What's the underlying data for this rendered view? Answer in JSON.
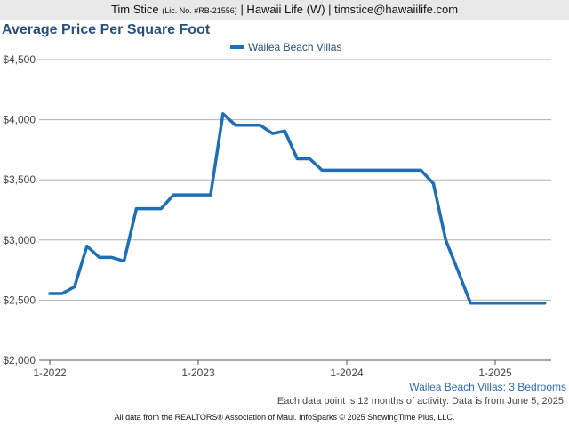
{
  "header": {
    "name": "Tim Stice",
    "license": "(Lic. No. #RB-21556)",
    "rest": "| Hawaii Life (W) | timstice@hawaiilife.com"
  },
  "colors": {
    "line": "#1f6fb4",
    "title": "#2b4f7b",
    "grid": "#b0b0b0"
  },
  "subtitle": "Wailea Beach Villas: 3 Bedrooms",
  "note": "Each data point is 12 months of activity. Data is from June 5, 2025.",
  "footer": "All data from the REALTORS® Association of Maui. InfoSparks © 2025 ShowingTime Plus, LLC.",
  "chart_data": {
    "type": "line",
    "title": "Average Price Per Square Foot",
    "legend": "top-center",
    "grid": true,
    "y_ticks": [
      "$2,000",
      "$2,500",
      "$3,000",
      "$3,500",
      "$4,000",
      "$4,500"
    ],
    "ylim": [
      2000,
      4500
    ],
    "x_ticks": [
      "1-2022",
      "1-2023",
      "1-2024",
      "1-2025"
    ],
    "x": [
      "2022-01",
      "2022-02",
      "2022-03",
      "2022-04",
      "2022-05",
      "2022-06",
      "2022-07",
      "2022-08",
      "2022-09",
      "2022-10",
      "2022-11",
      "2022-12",
      "2023-01",
      "2023-02",
      "2023-03",
      "2023-04",
      "2023-05",
      "2023-06",
      "2023-07",
      "2023-08",
      "2023-09",
      "2023-10",
      "2023-11",
      "2023-12",
      "2024-01",
      "2024-02",
      "2024-03",
      "2024-04",
      "2024-05",
      "2024-06",
      "2024-07",
      "2024-08",
      "2024-09",
      "2024-10",
      "2024-11",
      "2024-12",
      "2025-01",
      "2025-02",
      "2025-03",
      "2025-04",
      "2025-05"
    ],
    "series": [
      {
        "name": "Wailea Beach Villas",
        "values": [
          2555,
          2555,
          2610,
          2950,
          2855,
          2855,
          2825,
          3260,
          3260,
          3260,
          3375,
          3375,
          3375,
          3375,
          4050,
          3955,
          3955,
          3955,
          3885,
          3905,
          3675,
          3675,
          3580,
          3580,
          3580,
          3580,
          3580,
          3580,
          3580,
          3580,
          3580,
          3470,
          3000,
          2740,
          2475,
          2475,
          2475,
          2475,
          2475,
          2475,
          2475
        ]
      }
    ]
  }
}
